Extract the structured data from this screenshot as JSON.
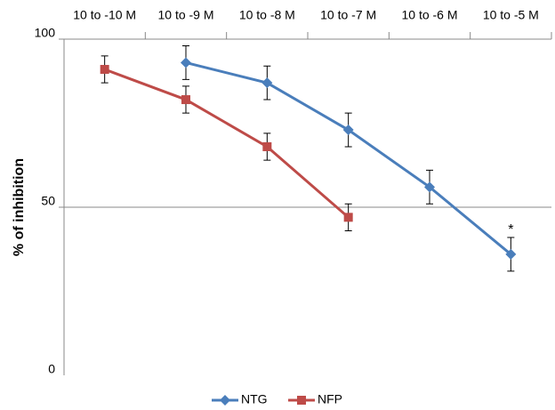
{
  "chart_data": {
    "type": "line",
    "y_label": "% of inhibition",
    "categories": [
      "10 to -10 M",
      "10 to -9 M",
      "10 to -8 M",
      "10 to -7 M",
      "10 to -6 M",
      "10 to -5 M"
    ],
    "series": [
      {
        "name": "NTG",
        "color": "#4a7ebb",
        "marker": "diamond",
        "values": [
          null,
          93,
          87,
          73,
          56,
          36
        ],
        "errors": [
          null,
          5,
          5,
          5,
          5,
          5
        ]
      },
      {
        "name": "NFP",
        "color": "#be4b48",
        "marker": "square",
        "values": [
          91,
          82,
          68,
          47,
          null,
          null
        ],
        "errors": [
          4,
          4,
          4,
          4,
          null,
          null
        ]
      }
    ],
    "annotation": "*",
    "ylim": [
      0,
      100
    ],
    "yticks": [
      0,
      50,
      100
    ],
    "grid": true
  }
}
